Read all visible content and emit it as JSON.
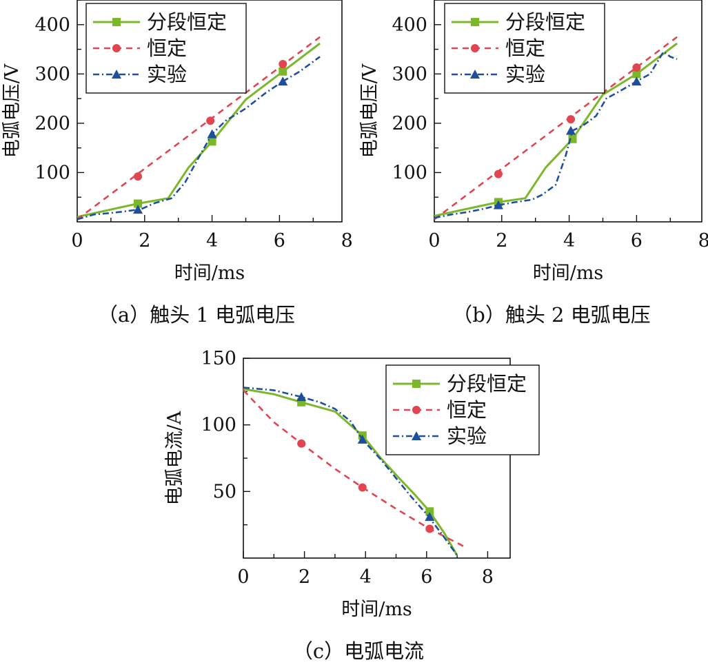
{
  "colors": {
    "piecewise": "#7ab829",
    "constant": "#e04550",
    "experiment": "#1f4e9c",
    "axis": "#111111"
  },
  "legend": {
    "piecewise": "分段恒定",
    "constant": "恒定",
    "experiment": "实验"
  },
  "chart_data": [
    {
      "id": "a",
      "type": "line",
      "caption": "（a）触头 1 电弧电压",
      "xlabel": "时间/ms",
      "ylabel": "电弧电压/V",
      "xlim": [
        0,
        8
      ],
      "ylim": [
        0,
        450
      ],
      "xticks": [
        0,
        2,
        4,
        6,
        8
      ],
      "yticks": [
        100,
        200,
        300,
        400
      ],
      "legend_position": "top-left",
      "series": [
        {
          "name": "分段恒定",
          "style": "piecewise",
          "x": [
            0,
            1.8,
            2.7,
            3.3,
            4.0,
            5.0,
            6.1,
            7.2
          ],
          "y": [
            10,
            37,
            48,
            110,
            163,
            248,
            305,
            362
          ],
          "marker_x": [
            1.8,
            4.0,
            6.1
          ],
          "marker_y": [
            37,
            163,
            305
          ]
        },
        {
          "name": "恒定",
          "style": "constant",
          "x": [
            0,
            7.2
          ],
          "y": [
            5,
            375
          ],
          "marker_x": [
            1.8,
            3.95,
            6.1
          ],
          "marker_y": [
            92,
            205,
            320
          ]
        },
        {
          "name": "实验",
          "style": "experiment",
          "x": [
            0,
            0.5,
            1.0,
            1.5,
            1.9,
            2.3,
            2.8,
            3.2,
            3.6,
            4.0,
            4.4,
            5.0,
            5.6,
            6.1,
            6.6,
            7.2
          ],
          "y": [
            5,
            15,
            18,
            22,
            26,
            38,
            48,
            80,
            130,
            178,
            205,
            230,
            262,
            285,
            305,
            335
          ],
          "marker_x": [
            1.8,
            4.0,
            6.1
          ],
          "marker_y": [
            25,
            178,
            285
          ]
        }
      ]
    },
    {
      "id": "b",
      "type": "line",
      "caption": "（b）触头 2 电弧电压",
      "xlabel": "时间/ms",
      "ylabel": "电弧电压/V",
      "xlim": [
        0,
        8
      ],
      "ylim": [
        0,
        450
      ],
      "xticks": [
        0,
        2,
        4,
        6,
        8
      ],
      "yticks": [
        100,
        200,
        300,
        400
      ],
      "legend_position": "top-left",
      "series": [
        {
          "name": "分段恒定",
          "style": "piecewise",
          "x": [
            0,
            1.9,
            2.7,
            3.3,
            4.1,
            5.0,
            6.0,
            7.2
          ],
          "y": [
            12,
            40,
            48,
            110,
            168,
            258,
            300,
            362
          ],
          "marker_x": [
            1.9,
            4.1,
            6.0
          ],
          "marker_y": [
            40,
            168,
            300
          ]
        },
        {
          "name": "恒定",
          "style": "constant",
          "x": [
            0,
            7.2
          ],
          "y": [
            5,
            375
          ],
          "marker_x": [
            1.9,
            4.05,
            6.0
          ],
          "marker_y": [
            97,
            208,
            313
          ]
        },
        {
          "name": "实验",
          "style": "experiment",
          "x": [
            0,
            0.5,
            1.0,
            1.5,
            1.9,
            2.4,
            2.9,
            3.2,
            3.6,
            3.9,
            4.1,
            4.4,
            4.8,
            5.1,
            5.5,
            6.0,
            6.4,
            6.8,
            7.0,
            7.2
          ],
          "y": [
            8,
            15,
            20,
            27,
            34,
            40,
            45,
            55,
            75,
            135,
            185,
            195,
            215,
            250,
            265,
            285,
            300,
            345,
            335,
            330
          ],
          "marker_x": [
            1.9,
            4.05,
            6.0
          ],
          "marker_y": [
            34,
            185,
            285
          ]
        }
      ]
    },
    {
      "id": "c",
      "type": "line",
      "caption": "（c）电弧电流",
      "xlabel": "时间/ms",
      "ylabel": "电弧电流/A",
      "xlim": [
        0,
        8
      ],
      "ylim": [
        0,
        150
      ],
      "xticks": [
        0,
        2,
        4,
        6,
        8
      ],
      "yticks": [
        50,
        100,
        150
      ],
      "legend_position": "top-right",
      "series": [
        {
          "name": "分段恒定",
          "style": "piecewise",
          "x": [
            0,
            1.0,
            1.9,
            3.0,
            3.9,
            4.5,
            5.1,
            5.6,
            6.1,
            6.6,
            7.0
          ],
          "y": [
            127,
            123,
            117,
            110,
            92,
            75,
            60,
            48,
            35,
            18,
            2
          ],
          "marker_x": [
            1.9,
            3.9,
            6.1
          ],
          "marker_y": [
            117,
            92,
            35
          ]
        },
        {
          "name": "恒定",
          "style": "constant",
          "x": [
            0,
            1.0,
            1.9,
            3.0,
            3.9,
            5.0,
            6.1,
            7.2
          ],
          "y": [
            126,
            102,
            86,
            67,
            53,
            37,
            22,
            9
          ],
          "marker_x": [
            1.9,
            3.9,
            6.1
          ],
          "marker_y": [
            86,
            53,
            22
          ]
        },
        {
          "name": "实验",
          "style": "experiment",
          "x": [
            0,
            1.0,
            1.9,
            2.5,
            3.0,
            3.5,
            3.9,
            4.5,
            5.0,
            5.5,
            6.0,
            6.5,
            7.0
          ],
          "y": [
            128,
            126,
            121,
            117,
            112,
            103,
            89,
            74,
            60,
            46,
            33,
            18,
            2
          ],
          "marker_x": [
            1.9,
            3.9,
            6.1
          ],
          "marker_y": [
            121,
            89,
            31
          ]
        }
      ]
    }
  ]
}
